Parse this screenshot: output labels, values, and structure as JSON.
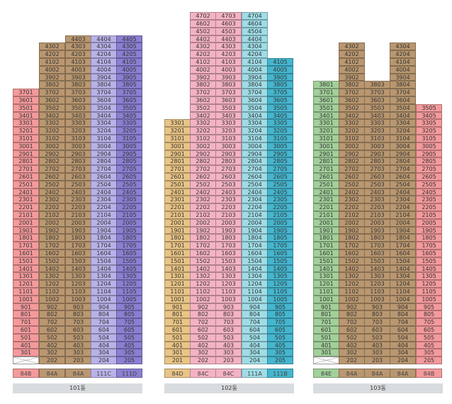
{
  "colors": {
    "84B": "#f49a9c",
    "84A": "#b99770",
    "111C": "#b8b2e8",
    "111D": "#8a7fd1",
    "84D": "#e8c486",
    "84C": "#f4b3c4",
    "111A": "#9fdde6",
    "111B": "#45b6cf",
    "84E": "#a2d09a"
  },
  "icons": {
    "missing_unit": "x-box-icon"
  },
  "buildings": [
    {
      "name": "101동",
      "lines": [
        {
          "type": "84B",
          "top": 37,
          "missing_floors": [
            2
          ]
        },
        {
          "type": "84A",
          "top": 43,
          "missing_floors": []
        },
        {
          "type": "84A",
          "top": 44,
          "missing_floors": []
        },
        {
          "type": "111C",
          "top": 44,
          "missing_floors": []
        },
        {
          "type": "111D",
          "top": 44,
          "missing_floors": []
        }
      ]
    },
    {
      "name": "102동",
      "lines": [
        {
          "type": "84D",
          "top": 33,
          "missing_floors": []
        },
        {
          "type": "84C",
          "top": 47,
          "missing_floors": []
        },
        {
          "type": "84C",
          "top": 47,
          "missing_floors": []
        },
        {
          "type": "111A",
          "top": 47,
          "missing_floors": []
        },
        {
          "type": "111B",
          "top": 41,
          "missing_floors": []
        }
      ]
    },
    {
      "name": "103동",
      "lines": [
        {
          "type": "84E",
          "top": 38,
          "missing_floors": [
            2
          ]
        },
        {
          "type": "84A",
          "top": 43,
          "missing_floors": []
        },
        {
          "type": "84A",
          "top": 38,
          "missing_floors": []
        },
        {
          "type": "84A",
          "top": 43,
          "missing_floors": []
        },
        {
          "type": "84B",
          "top": 35,
          "missing_floors": []
        }
      ]
    }
  ]
}
